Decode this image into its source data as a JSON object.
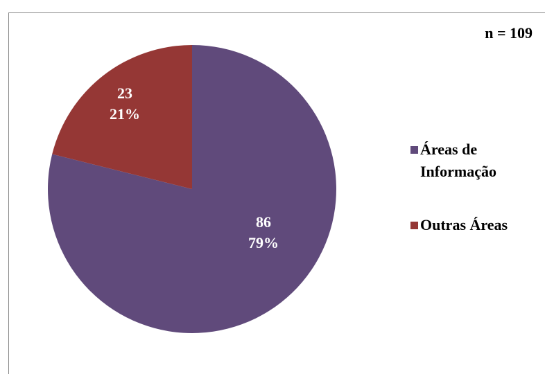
{
  "chart_data": {
    "type": "pie",
    "annotation": "n = 109",
    "categories": [
      "Áreas de Informação",
      "Outras Áreas"
    ],
    "values": [
      86,
      23
    ],
    "percent_labels": [
      "79%",
      "21%"
    ],
    "colors": [
      "#604a7b",
      "#953735"
    ],
    "legend": "right"
  }
}
